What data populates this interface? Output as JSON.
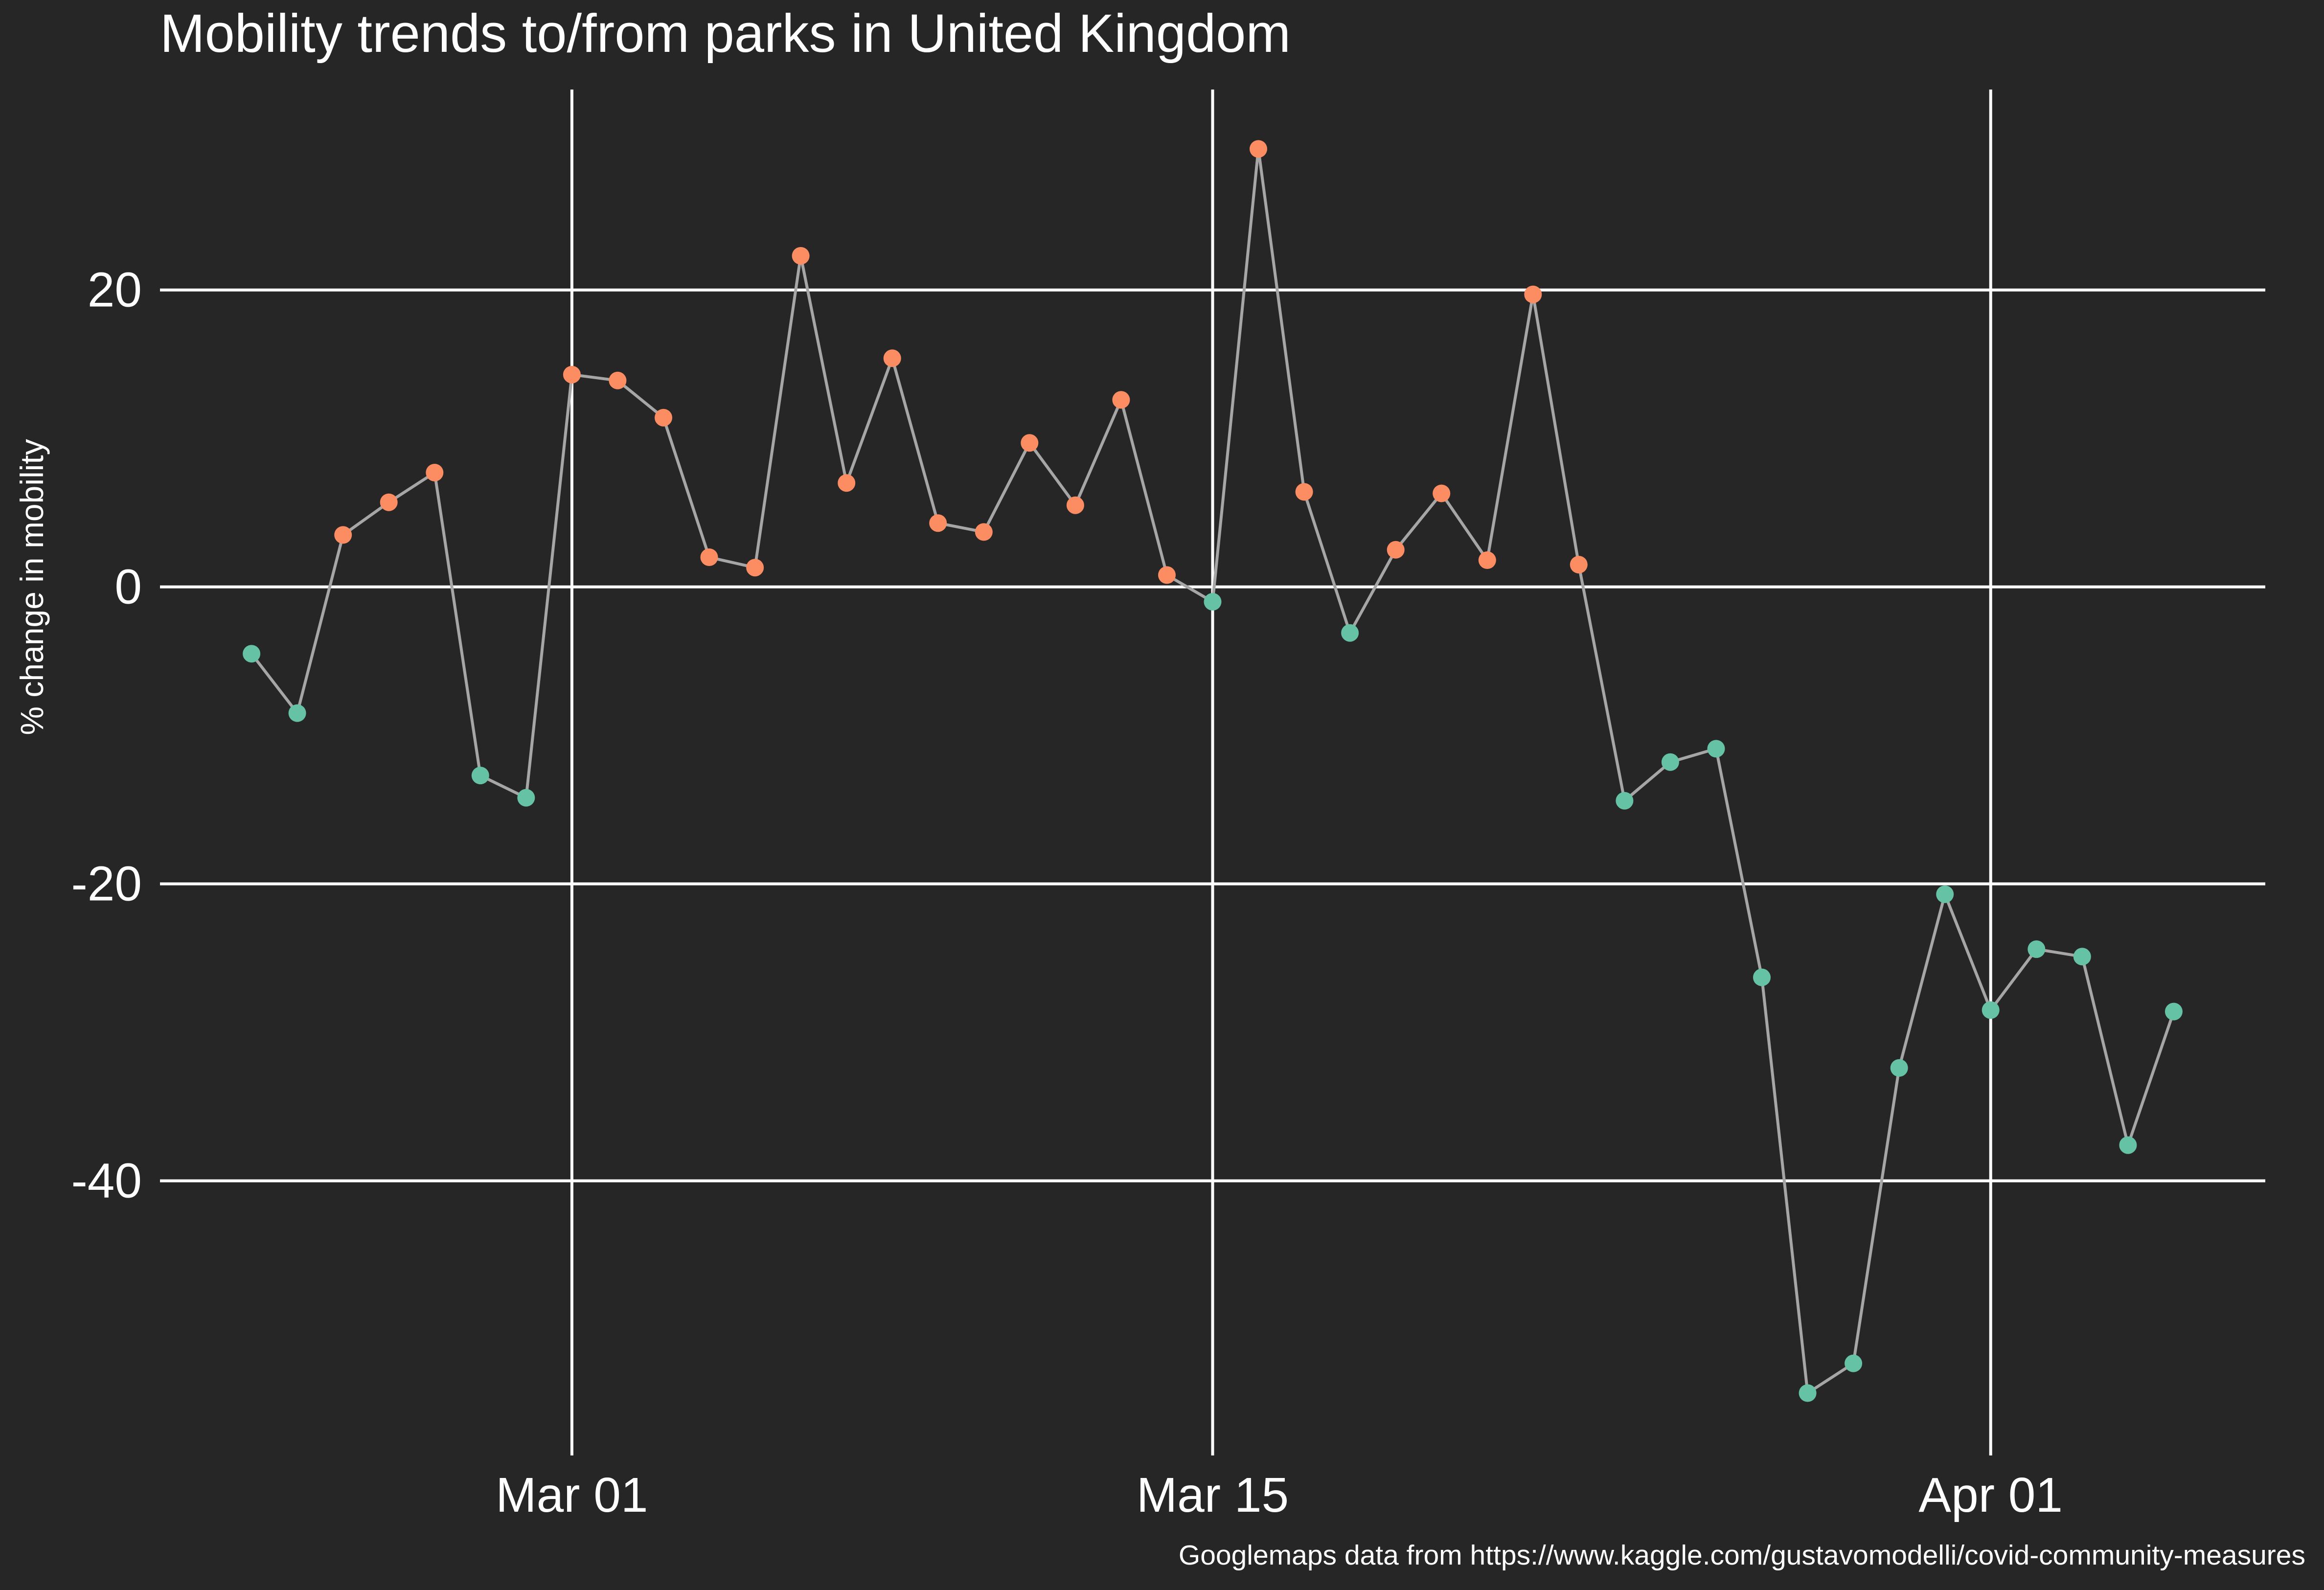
{
  "chart_data": {
    "type": "line",
    "title": "Mobility trends to/from parks in United Kingdom",
    "xlabel": "",
    "ylabel": "% change in mobility",
    "caption": "Googlemaps data from https://www.kaggle.com/gustavomodelli/covid-community-measures",
    "x_ticks": [
      {
        "date": "2020-03-01",
        "label": "Mar 01"
      },
      {
        "date": "2020-03-15",
        "label": "Mar 15"
      },
      {
        "date": "2020-04-01",
        "label": "Apr 01"
      }
    ],
    "y_ticks": [
      -40,
      -20,
      0,
      20
    ],
    "xlim": [
      "2020-02-21",
      "2020-04-07"
    ],
    "ylim": [
      -58.5,
      33.5
    ],
    "grid": true,
    "legend": "none",
    "colors": {
      "background": "#262626",
      "grid": "#ffffff",
      "line": "#a6a6a6",
      "positive": "#fc8d62",
      "negative": "#66c2a5",
      "text": "#ffffff"
    },
    "series": [
      {
        "x": [
          "2020-02-23",
          "2020-02-24",
          "2020-02-25",
          "2020-02-26",
          "2020-02-27",
          "2020-02-28",
          "2020-02-29",
          "2020-03-01",
          "2020-03-02",
          "2020-03-03",
          "2020-03-04",
          "2020-03-05",
          "2020-03-06",
          "2020-03-07",
          "2020-03-08",
          "2020-03-09",
          "2020-03-10",
          "2020-03-11",
          "2020-03-12",
          "2020-03-13",
          "2020-03-14",
          "2020-03-15",
          "2020-03-16",
          "2020-03-17",
          "2020-03-18",
          "2020-03-19",
          "2020-03-20",
          "2020-03-21",
          "2020-03-22",
          "2020-03-23",
          "2020-03-24",
          "2020-03-25",
          "2020-03-26",
          "2020-03-27",
          "2020-03-28",
          "2020-03-29",
          "2020-03-30",
          "2020-03-31",
          "2020-04-01",
          "2020-04-02",
          "2020-04-03",
          "2020-04-04",
          "2020-04-05"
        ],
        "values": [
          -4.5,
          -8.5,
          3.5,
          5.7,
          7.7,
          -12.7,
          -14.2,
          14.3,
          13.9,
          11.4,
          2.0,
          1.3,
          22.3,
          7.0,
          15.4,
          4.3,
          3.7,
          9.7,
          5.5,
          12.6,
          0.8,
          -1.0,
          29.5,
          6.4,
          -3.1,
          2.5,
          6.3,
          1.8,
          19.7,
          1.5,
          -14.4,
          -11.8,
          -10.9,
          -26.3,
          -54.3,
          -52.3,
          -32.4,
          -20.7,
          -28.5,
          -24.4,
          -24.9,
          -37.6,
          -28.6
        ]
      }
    ]
  }
}
